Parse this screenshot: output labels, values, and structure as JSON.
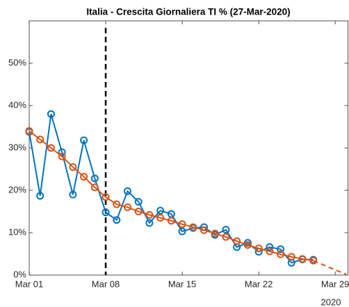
{
  "chart_data": {
    "type": "line",
    "title": "Italia - Crescita Giornaliera TI % (27-Mar-2020)",
    "x_secondary_label": "2020",
    "xlim": [
      1,
      30.2
    ],
    "xticks": [
      {
        "value": 1,
        "label": "Mar 01"
      },
      {
        "value": 8,
        "label": "Mar 08"
      },
      {
        "value": 15,
        "label": "Mar 15"
      },
      {
        "value": 22,
        "label": "Mar 22"
      },
      {
        "value": 29,
        "label": "Mar 29"
      }
    ],
    "ylim": [
      0,
      60
    ],
    "yticks": [
      {
        "value": 0,
        "label": "0%"
      },
      {
        "value": 10,
        "label": "10%"
      },
      {
        "value": 20,
        "label": "20%"
      },
      {
        "value": 30,
        "label": "30%"
      },
      {
        "value": 40,
        "label": "40%"
      },
      {
        "value": 50,
        "label": "50%"
      }
    ],
    "vline": 8,
    "grid": false,
    "series": [
      {
        "color": "#0072bd",
        "marker": "circle",
        "style": "solid",
        "x": [
          1,
          2,
          3,
          4,
          5,
          6,
          7,
          8,
          9,
          10,
          11,
          12,
          13,
          14,
          15,
          16,
          17,
          18,
          19,
          20,
          21,
          22,
          23,
          24,
          25,
          26,
          27
        ],
        "values": [
          33.8,
          18.7,
          38.0,
          29.0,
          19.0,
          31.8,
          22.8,
          14.8,
          13.0,
          19.8,
          17.3,
          12.3,
          15.2,
          14.4,
          10.3,
          11.1,
          11.3,
          9.5,
          10.7,
          6.6,
          7.6,
          5.5,
          6.6,
          6.1,
          2.9,
          3.7,
          3.6
        ]
      },
      {
        "color": "#d95319",
        "marker": "circle",
        "style": "solid",
        "x": [
          1,
          2,
          3,
          4,
          5,
          6,
          7,
          8,
          9,
          10,
          11,
          12,
          13,
          14,
          15,
          16,
          17,
          18,
          19,
          20,
          21,
          22,
          23,
          24,
          25,
          26,
          27
        ],
        "values": [
          34.0,
          32.0,
          30.0,
          28.0,
          25.5,
          23.2,
          20.7,
          18.4,
          16.7,
          16.0,
          15.0,
          14.2,
          13.5,
          12.8,
          12.0,
          11.3,
          10.6,
          9.8,
          9.0,
          8.0,
          7.1,
          6.3,
          5.6,
          4.9,
          4.3,
          3.8,
          3.4
        ]
      },
      {
        "color": "#d95319",
        "marker": "none",
        "style": "dashed",
        "x": [
          27,
          28,
          29,
          30
        ],
        "values": [
          3.4,
          2.3,
          1.2,
          0.2
        ]
      }
    ]
  }
}
